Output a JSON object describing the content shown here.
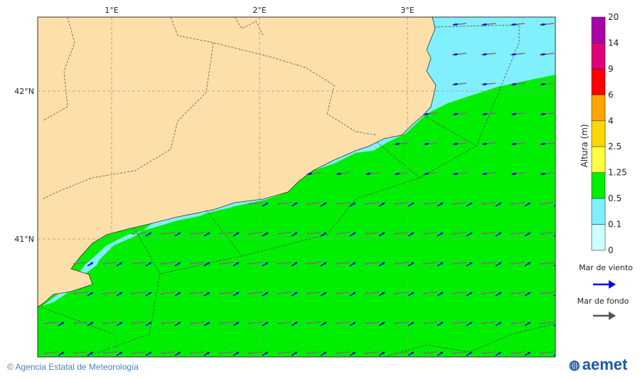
{
  "map": {
    "lon_labels": [
      "1°E",
      "2°E",
      "3°E"
    ],
    "lat_labels": [
      "42°N",
      "41°N"
    ],
    "colors": {
      "land": "#fddfaa",
      "sea_green": "#00ee00",
      "sea_cyan": "#80f0fc",
      "wind_arrow": "#0000ee",
      "swell_arrow": "#555555"
    }
  },
  "legend": {
    "title": "Altura (m)",
    "levels": [
      "0",
      "0.1",
      "0.5",
      "1.25",
      "2.5",
      "4",
      "6",
      "9",
      "14",
      "20"
    ],
    "colors": [
      "#ccffff",
      "#80f0fc",
      "#00ee00",
      "#ffff44",
      "#ffd700",
      "#ffa500",
      "#ff0000",
      "#e0007a",
      "#aa00aa"
    ],
    "wind_sea_label": "Mar de viento",
    "swell_label": "Mar de fondo"
  },
  "footer": {
    "credit": "© Agencia Estatal de Meteorología",
    "logo": "aemet"
  }
}
